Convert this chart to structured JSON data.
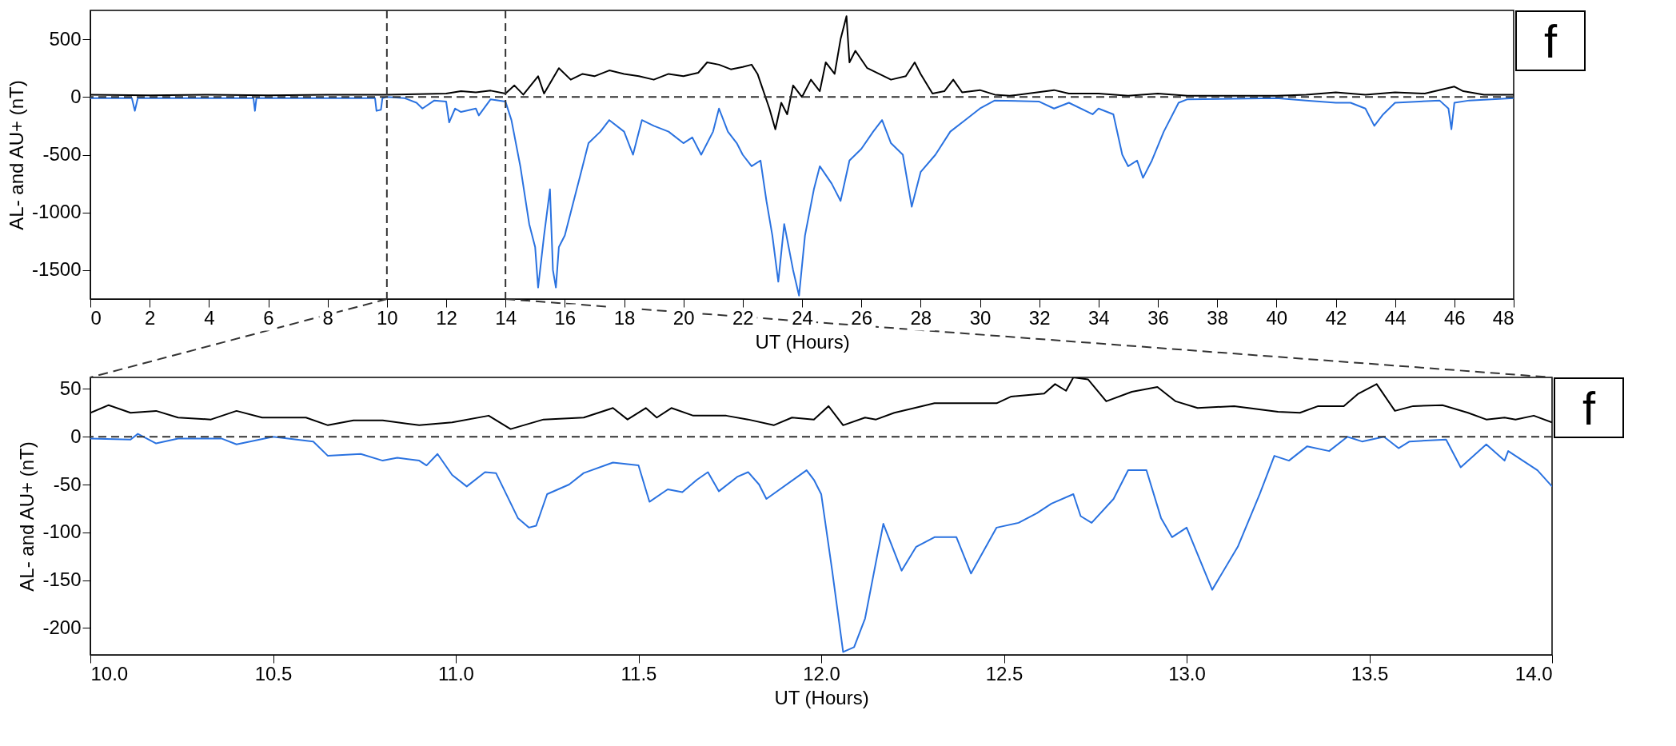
{
  "chart_data": [
    {
      "type": "line",
      "xlabel": "UT (Hours)",
      "ylabel": "AL- and AU+ (nT)",
      "annotations": [
        "f"
      ],
      "xlim": [
        0,
        48
      ],
      "ylim": [
        -1750,
        750
      ],
      "xticks": [
        0,
        2,
        4,
        6,
        8,
        10,
        12,
        14,
        16,
        18,
        20,
        22,
        24,
        26,
        28,
        30,
        32,
        34,
        36,
        38,
        40,
        42,
        44,
        46,
        48
      ],
      "yticks": [
        -1500,
        -1000,
        -500,
        0,
        500
      ],
      "grid": false,
      "ref_lines": [
        {
          "axis": "y",
          "value": 0,
          "line_style": "dashed",
          "color": "#333333"
        },
        {
          "axis": "x",
          "value": 10,
          "line_style": "dashed",
          "color": "#333333"
        },
        {
          "axis": "x",
          "value": 14,
          "line_style": "dashed",
          "color": "#333333"
        }
      ],
      "series": [
        {
          "color": "#000000",
          "x": [
            0,
            2,
            4,
            6,
            8,
            10,
            11,
            12,
            12.5,
            13,
            13.5,
            14,
            14.3,
            14.6,
            15.1,
            15.3,
            15.8,
            16.2,
            16.6,
            17,
            17.5,
            18,
            18.5,
            19,
            19.5,
            20,
            20.5,
            20.8,
            21.2,
            21.6,
            22,
            22.3,
            22.5,
            22.9,
            23.1,
            23.3,
            23.5,
            23.7,
            24,
            24.3,
            24.6,
            24.8,
            25.1,
            25.3,
            25.5,
            25.6,
            25.8,
            26.2,
            26.6,
            27,
            27.5,
            27.8,
            28,
            28.4,
            28.8,
            29.1,
            29.4,
            30,
            30.5,
            31,
            32.5,
            33,
            34,
            35,
            36,
            37,
            38,
            40,
            41,
            42,
            43,
            44,
            45,
            46,
            46.3,
            47,
            48
          ],
          "values": [
            20,
            15,
            20,
            15,
            20,
            20,
            25,
            30,
            50,
            40,
            55,
            30,
            100,
            20,
            180,
            30,
            250,
            150,
            200,
            180,
            230,
            200,
            180,
            150,
            200,
            180,
            210,
            300,
            280,
            240,
            260,
            280,
            200,
            -100,
            -280,
            -50,
            -150,
            100,
            0,
            150,
            50,
            300,
            200,
            500,
            700,
            300,
            400,
            250,
            200,
            150,
            180,
            300,
            200,
            30,
            50,
            150,
            40,
            60,
            20,
            10,
            60,
            30,
            30,
            10,
            30,
            10,
            10,
            10,
            20,
            40,
            20,
            40,
            30,
            90,
            50,
            20,
            20
          ]
        },
        {
          "color": "#2a72e0",
          "x": [
            0,
            1.4,
            1.5,
            1.6,
            5.5,
            5.55,
            5.6,
            9.6,
            9.65,
            9.8,
            9.85,
            10,
            10.6,
            11,
            11.2,
            11.6,
            12,
            12.1,
            12.3,
            12.5,
            13,
            13.1,
            13.5,
            14,
            14.2,
            14.5,
            14.8,
            15,
            15.1,
            15.3,
            15.5,
            15.6,
            15.7,
            15.8,
            16,
            16.2,
            16.5,
            16.8,
            17.2,
            17.5,
            18,
            18.3,
            18.6,
            19,
            19.5,
            20,
            20.3,
            20.6,
            21,
            21.2,
            21.5,
            21.8,
            22,
            22.3,
            22.6,
            22.8,
            23,
            23.2,
            23.4,
            23.7,
            23.9,
            24.1,
            24.4,
            24.6,
            25,
            25.3,
            25.6,
            26,
            26.4,
            26.7,
            27,
            27.4,
            27.7,
            28,
            28.5,
            29,
            29.5,
            30,
            30.5,
            32,
            32.5,
            33,
            33.8,
            34,
            34.5,
            34.8,
            35,
            35.3,
            35.5,
            35.8,
            36.2,
            36.7,
            37,
            40,
            41,
            42,
            42.5,
            43,
            43.3,
            43.6,
            44,
            45.5,
            45.8,
            45.9,
            46,
            46.5,
            48
          ],
          "values": [
            -10,
            -10,
            -120,
            -10,
            -10,
            -120,
            -10,
            -10,
            -120,
            -110,
            -10,
            0,
            -10,
            -50,
            -100,
            -30,
            -40,
            -220,
            -100,
            -130,
            -100,
            -160,
            -20,
            -40,
            -200,
            -600,
            -1100,
            -1300,
            -1650,
            -1200,
            -800,
            -1500,
            -1650,
            -1300,
            -1200,
            -1000,
            -700,
            -400,
            -300,
            -200,
            -300,
            -500,
            -200,
            -250,
            -300,
            -400,
            -350,
            -500,
            -300,
            -100,
            -300,
            -400,
            -500,
            -600,
            -550,
            -900,
            -1200,
            -1600,
            -1100,
            -1500,
            -1720,
            -1200,
            -800,
            -600,
            -750,
            -900,
            -550,
            -450,
            -300,
            -200,
            -400,
            -500,
            -950,
            -650,
            -500,
            -300,
            -200,
            -100,
            -30,
            -40,
            -100,
            -50,
            -150,
            -100,
            -150,
            -500,
            -600,
            -550,
            -700,
            -550,
            -300,
            -50,
            -20,
            -10,
            -30,
            -50,
            -50,
            -100,
            -250,
            -150,
            -50,
            -30,
            -100,
            -280,
            -50,
            -30,
            -10
          ]
        }
      ]
    },
    {
      "type": "line",
      "xlabel": "UT (Hours)",
      "ylabel": "AL- and AU+ (nT)",
      "annotations": [
        "f"
      ],
      "xlim": [
        10,
        14
      ],
      "ylim": [
        -228,
        62
      ],
      "xticks": [
        {
          "value": 10,
          "label": "10.0"
        },
        10.5,
        {
          "value": 11,
          "label": "11.0"
        },
        11.5,
        {
          "value": 12,
          "label": "12.0"
        },
        12.5,
        {
          "value": 13,
          "label": "13.0"
        },
        13.5,
        {
          "value": 14,
          "label": "14.0"
        }
      ],
      "yticks": [
        -200,
        -150,
        -100,
        -50,
        0,
        50
      ],
      "grid": false,
      "ref_lines": [
        {
          "axis": "y",
          "value": 0,
          "line_style": "dashed",
          "color": "#333333"
        }
      ],
      "series": [
        {
          "color": "#000000",
          "x": [
            10,
            10.05,
            10.11,
            10.18,
            10.24,
            10.33,
            10.4,
            10.47,
            10.59,
            10.65,
            10.72,
            10.8,
            10.9,
            10.99,
            11.09,
            11.15,
            11.24,
            11.35,
            11.43,
            11.47,
            11.52,
            11.55,
            11.59,
            11.65,
            11.74,
            11.8,
            11.87,
            11.92,
            11.98,
            12.02,
            12.06,
            12.12,
            12.15,
            12.2,
            12.31,
            12.48,
            12.52,
            12.61,
            12.64,
            12.67,
            12.69,
            12.73,
            12.78,
            12.85,
            12.92,
            12.97,
            13.03,
            13.13,
            13.25,
            13.31,
            13.36,
            13.43,
            13.47,
            13.52,
            13.57,
            13.62,
            13.7,
            13.77,
            13.82,
            13.87,
            13.9,
            13.95,
            14
          ],
          "values": [
            25,
            33,
            25,
            27,
            20,
            18,
            27,
            20,
            20,
            12,
            17,
            17,
            12,
            15,
            22,
            8,
            18,
            20,
            30,
            18,
            30,
            20,
            30,
            22,
            22,
            18,
            12,
            20,
            18,
            32,
            12,
            20,
            18,
            25,
            35,
            35,
            42,
            45,
            55,
            48,
            62,
            60,
            37,
            47,
            52,
            37,
            30,
            32,
            26,
            25,
            32,
            32,
            45,
            55,
            27,
            32,
            33,
            25,
            18,
            20,
            18,
            22,
            15
          ]
        },
        {
          "color": "#2a72e0",
          "x": [
            10,
            10.11,
            10.13,
            10.18,
            10.24,
            10.36,
            10.4,
            10.5,
            10.61,
            10.65,
            10.74,
            10.8,
            10.84,
            10.9,
            10.92,
            10.95,
            10.99,
            11.03,
            11.08,
            11.11,
            11.17,
            11.2,
            11.22,
            11.25,
            11.31,
            11.35,
            11.43,
            11.5,
            11.53,
            11.58,
            11.62,
            11.66,
            11.69,
            11.72,
            11.77,
            11.8,
            11.83,
            11.85,
            11.96,
            11.98,
            12,
            12.03,
            12.06,
            12.09,
            12.12,
            12.17,
            12.22,
            12.26,
            12.31,
            12.37,
            12.41,
            12.48,
            12.54,
            12.59,
            12.63,
            12.69,
            12.71,
            12.74,
            12.8,
            12.84,
            12.89,
            12.93,
            12.96,
            13,
            13.07,
            13.14,
            13.2,
            13.24,
            13.28,
            13.33,
            13.39,
            13.44,
            13.48,
            13.54,
            13.58,
            13.61,
            13.71,
            13.75,
            13.82,
            13.87,
            13.88,
            13.96,
            14
          ],
          "values": [
            -2,
            -3,
            3,
            -7,
            -2,
            -2,
            -8,
            0,
            -5,
            -20,
            -18,
            -25,
            -22,
            -25,
            -30,
            -18,
            -40,
            -52,
            -37,
            -38,
            -85,
            -95,
            -93,
            -60,
            -50,
            -38,
            -27,
            -30,
            -68,
            -55,
            -58,
            -45,
            -37,
            -57,
            -42,
            -37,
            -50,
            -65,
            -35,
            -45,
            -60,
            -140,
            -225,
            -220,
            -190,
            -91,
            -140,
            -115,
            -105,
            -105,
            -143,
            -95,
            -90,
            -80,
            -70,
            -60,
            -83,
            -90,
            -65,
            -35,
            -35,
            -85,
            -105,
            -95,
            -160,
            -115,
            -60,
            -20,
            -25,
            -10,
            -15,
            0,
            -5,
            0,
            -12,
            -5,
            -3,
            -32,
            -8,
            -25,
            -15,
            -35,
            -52
          ]
        }
      ]
    }
  ]
}
